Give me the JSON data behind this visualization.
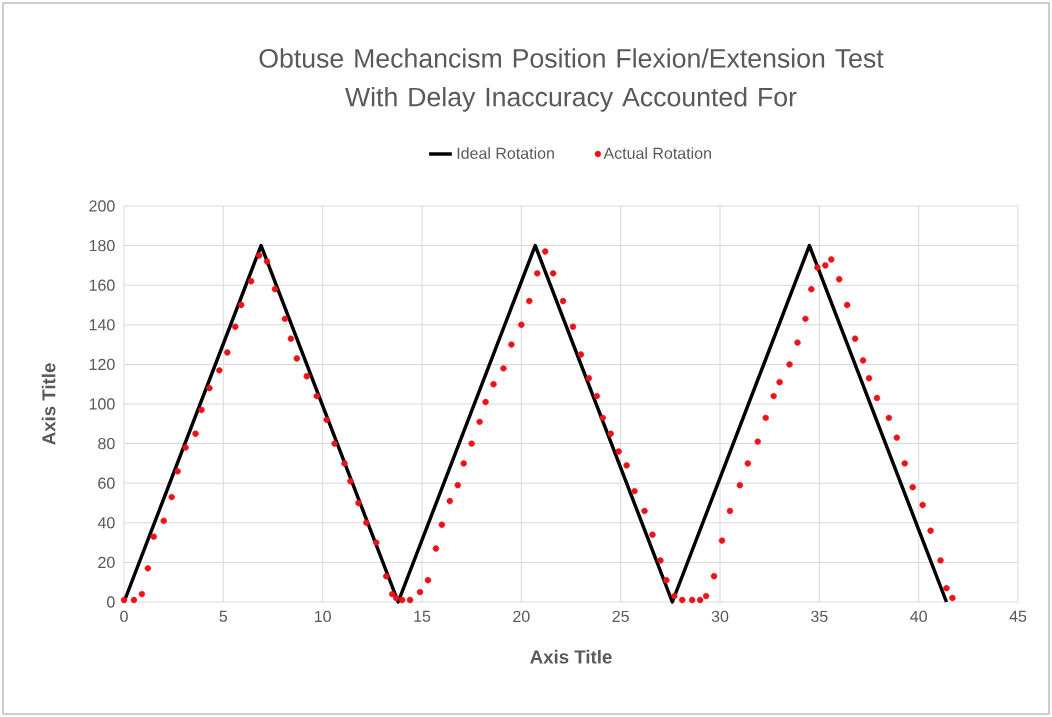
{
  "chart_data": {
    "type": "line",
    "title": "Obtuse Mechancism Position Flexion/Extension Test\nWith Delay Inaccuracy Accounted For",
    "xlabel": "Axis Title",
    "ylabel": "Axis Title",
    "xlim": [
      0,
      45
    ],
    "xticks": [
      0,
      5,
      10,
      15,
      20,
      25,
      30,
      35,
      40,
      45
    ],
    "ylim": [
      0,
      200
    ],
    "yticks": [
      0,
      20,
      40,
      60,
      80,
      100,
      120,
      140,
      160,
      180,
      200
    ],
    "grid": true,
    "legend": "top",
    "series": [
      {
        "name": "Ideal Rotation",
        "color": "#000000",
        "marker": "none",
        "line_style": "solid",
        "x": [
          0,
          6.9,
          13.8,
          20.7,
          27.6,
          34.5,
          41.4
        ],
        "values": [
          0,
          180,
          0,
          180,
          0,
          180,
          0
        ]
      },
      {
        "name": "Actual Rotation",
        "type": "scatter",
        "color": "#e8141a",
        "marker": "circle",
        "x": [
          0,
          0.5,
          0.9,
          1.2,
          1.5,
          2.0,
          2.4,
          2.7,
          3.1,
          3.6,
          3.9,
          4.3,
          4.8,
          5.2,
          5.6,
          5.9,
          6.4,
          6.8,
          7.2,
          7.6,
          8.1,
          8.4,
          8.7,
          9.2,
          9.7,
          10.2,
          10.6,
          11.1,
          11.4,
          11.8,
          12.2,
          12.7,
          13.2,
          13.5,
          13.7,
          14.0,
          14.4,
          14.9,
          15.3,
          15.7,
          16.0,
          16.4,
          16.8,
          17.1,
          17.5,
          17.9,
          18.2,
          18.6,
          19.1,
          19.5,
          20.0,
          20.4,
          20.8,
          21.2,
          21.6,
          22.1,
          22.6,
          23.0,
          23.4,
          23.8,
          24.1,
          24.5,
          24.9,
          25.3,
          25.7,
          26.2,
          26.6,
          27.0,
          27.3,
          27.7,
          28.1,
          28.6,
          29.0,
          29.3,
          29.7,
          30.1,
          30.5,
          31.0,
          31.4,
          31.9,
          32.3,
          32.7,
          33.0,
          33.5,
          33.9,
          34.3,
          34.6,
          34.9,
          35.3,
          35.6,
          36.0,
          36.4,
          36.8,
          37.2,
          37.5,
          37.9,
          38.5,
          38.9,
          39.3,
          39.7,
          40.2,
          40.6,
          41.1,
          41.4,
          41.7
        ],
        "values": [
          1,
          1,
          4,
          17,
          33,
          41,
          53,
          66,
          78,
          85,
          97,
          108,
          117,
          126,
          139,
          150,
          162,
          175,
          172,
          158,
          143,
          133,
          123,
          114,
          104,
          92,
          80,
          70,
          61,
          50,
          40,
          30,
          13,
          4,
          2,
          1,
          1,
          5,
          11,
          27,
          39,
          51,
          59,
          70,
          80,
          91,
          101,
          110,
          118,
          130,
          140,
          152,
          166,
          177,
          166,
          152,
          139,
          125,
          113,
          104,
          93,
          85,
          76,
          69,
          56,
          46,
          34,
          21,
          11,
          3,
          1,
          1,
          1,
          3,
          13,
          31,
          46,
          59,
          70,
          81,
          93,
          104,
          111,
          120,
          131,
          143,
          158,
          169,
          170,
          173,
          163,
          150,
          133,
          122,
          113,
          103,
          93,
          83,
          70,
          58,
          49,
          36,
          21,
          7,
          2
        ]
      }
    ]
  }
}
